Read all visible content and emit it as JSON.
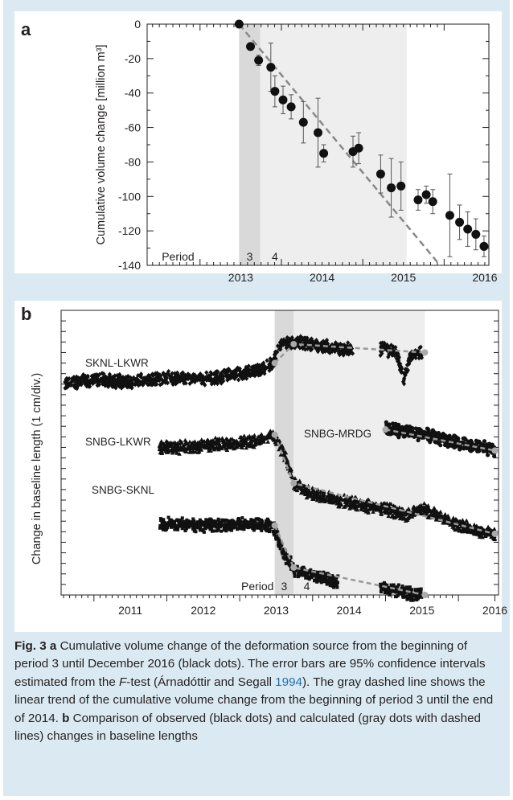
{
  "panel_a": {
    "letter": "a",
    "ylabel": "Cumulative volume change [million m³]",
    "period_label": "Period",
    "period_nums": [
      "3",
      "4"
    ]
  },
  "panel_b": {
    "letter": "b",
    "ylabel": "Change in baseline length (1 cm/div.)",
    "period_label": "Period",
    "period_nums": [
      "3",
      "4"
    ],
    "series_labels": [
      "SKNL-LKWR",
      "SNBG-LKWR",
      "SNBG-MRDG",
      "SNBG-SKNL"
    ]
  },
  "chart_data": [
    {
      "type": "scatter",
      "panel": "a",
      "title": "",
      "xlabel": "",
      "ylabel": "Cumulative volume change [million m³]",
      "xlim": [
        2012.35,
        2016.55
      ],
      "ylim": [
        -140,
        0
      ],
      "x_ticks": [
        "2013",
        "2014",
        "2015",
        "2016"
      ],
      "y_ticks": [
        "0",
        "-20",
        "-40",
        "-60",
        "-80",
        "-100",
        "-120",
        "-140"
      ],
      "shaded_periods": [
        {
          "label": "3",
          "start": 2013.48,
          "end": 2013.74,
          "shade": "dark"
        },
        {
          "label": "4",
          "start": 2013.74,
          "end": 2015.54,
          "shade": "light"
        }
      ],
      "trend_line": {
        "x": [
          2013.48,
          2015.95
        ],
        "y": [
          0,
          -140
        ],
        "style": "dashed gray"
      },
      "points": [
        {
          "x": 2013.48,
          "y": 0,
          "err": 0
        },
        {
          "x": 2013.62,
          "y": -13,
          "err": 2
        },
        {
          "x": 2013.72,
          "y": -21,
          "err": 3
        },
        {
          "x": 2013.87,
          "y": -25,
          "err": 14
        },
        {
          "x": 2013.92,
          "y": -39,
          "err": 9
        },
        {
          "x": 2014.02,
          "y": -44,
          "err": 8
        },
        {
          "x": 2014.12,
          "y": -48,
          "err": 7
        },
        {
          "x": 2014.27,
          "y": -57,
          "err": 12
        },
        {
          "x": 2014.45,
          "y": -63,
          "err": 20
        },
        {
          "x": 2014.52,
          "y": -75,
          "err": 5
        },
        {
          "x": 2014.88,
          "y": -74,
          "err": 9
        },
        {
          "x": 2014.95,
          "y": -72,
          "err": 9
        },
        {
          "x": 2015.22,
          "y": -87,
          "err": 11
        },
        {
          "x": 2015.35,
          "y": -95,
          "err": 17
        },
        {
          "x": 2015.47,
          "y": -94,
          "err": 14
        },
        {
          "x": 2015.68,
          "y": -102,
          "err": 6
        },
        {
          "x": 2015.78,
          "y": -99,
          "err": 5
        },
        {
          "x": 2015.86,
          "y": -103,
          "err": 7
        },
        {
          "x": 2016.07,
          "y": -111,
          "err": 24
        },
        {
          "x": 2016.19,
          "y": -115,
          "err": 10
        },
        {
          "x": 2016.29,
          "y": -119,
          "err": 10
        },
        {
          "x": 2016.39,
          "y": -122,
          "err": 9
        },
        {
          "x": 2016.49,
          "y": -129,
          "err": 6
        }
      ]
    },
    {
      "type": "scatter",
      "panel": "b",
      "title": "",
      "xlabel": "",
      "ylabel": "Change in baseline length (1 cm/div.)",
      "xlim": [
        2010.55,
        2016.55
      ],
      "x_ticks": [
        "2011",
        "2012",
        "2013",
        "2014",
        "2015",
        "2016"
      ],
      "y_divisions": 27,
      "shaded_periods": [
        {
          "label": "3",
          "start": 2013.48,
          "end": 2013.74,
          "shade": "dark"
        },
        {
          "label": "4",
          "start": 2013.74,
          "end": 2015.54,
          "shade": "light"
        }
      ],
      "series": [
        {
          "name": "SKNL-LKWR",
          "marker": "diamond",
          "x": [
            2010.6,
            2011.0,
            2011.5,
            2012.0,
            2012.5,
            2013.0,
            2013.3,
            2013.45,
            2013.55,
            2013.8,
            2014.2,
            2014.6,
            2015.0,
            2015.15,
            2015.25,
            2015.35,
            2015.5
          ],
          "y_div": [
            6.8,
            6.6,
            6.8,
            6.4,
            6.5,
            6.0,
            5.6,
            5.0,
            3.2,
            3.0,
            3.5,
            3.8,
            3.7,
            4.0,
            6.5,
            4.3,
            4.0
          ],
          "model": {
            "x": [
              2013.48,
              2013.74,
              2015.54
            ],
            "y_div": [
              5.0,
              3.2,
              4.0
            ]
          }
        },
        {
          "name": "SNBG-LKWR",
          "marker": "triangle",
          "x": [
            2011.9,
            2012.3,
            2012.8,
            2013.2,
            2013.45,
            2013.6,
            2013.75,
            2014.0,
            2014.5,
            2015.0,
            2015.3,
            2015.5,
            2016.0,
            2016.5
          ],
          "y_div": [
            13.0,
            13.0,
            12.7,
            12.5,
            11.8,
            13.5,
            16.5,
            17.5,
            18.3,
            18.8,
            19.5,
            18.8,
            20.4,
            21.3
          ],
          "model": {
            "x": [
              2013.48,
              2013.74,
              2016.5
            ],
            "y_div": [
              11.8,
              16.4,
              21.2
            ]
          }
        },
        {
          "name": "SNBG-MRDG",
          "marker": "circle",
          "x": [
            2015.0,
            2015.5,
            2016.0,
            2016.5
          ],
          "y_div": [
            11.2,
            11.7,
            12.6,
            13.2
          ],
          "model": {
            "x": [
              2015.0,
              2016.5
            ],
            "y_div": [
              11.3,
              13.3
            ]
          }
        },
        {
          "name": "SNBG-SKNL",
          "marker": "square",
          "x": [
            2011.9,
            2012.5,
            2013.0,
            2013.45,
            2013.6,
            2013.75,
            2014.0,
            2014.3,
            2015.0,
            2015.3,
            2015.5
          ],
          "y_div": [
            20.2,
            20.4,
            20.3,
            20.4,
            23.0,
            24.6,
            25.1,
            25.7,
            26.4,
            26.8,
            27.0
          ],
          "model": {
            "x": [
              2013.48,
              2013.74,
              2015.54
            ],
            "y_div": [
              20.4,
              24.4,
              27.0
            ]
          }
        }
      ]
    }
  ],
  "caption": {
    "fig_label": "Fig. 3",
    "a_letter": "a",
    "text_1": " Cumulative volume change of the deformation source from the beginning of period 3 until December 2016 (black dots). The error bars are 95% confidence intervals estimated from the ",
    "ftest": "F",
    "text_2": "-test (Árnadóttir and Segall ",
    "cite_year": "1994",
    "text_3": "). The gray dashed line shows the linear trend of the cumulative volume change from the beginning of period 3 until the end of 2014. ",
    "b_letter": "b",
    "text_4": " Comparison of observed (black dots) and calculated (gray dots with dashed lines) changes in baseline lengths"
  }
}
